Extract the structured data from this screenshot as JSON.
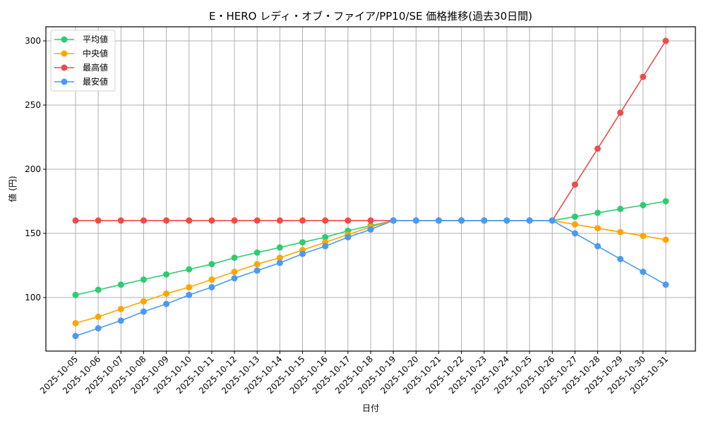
{
  "chart": {
    "title": "E・HERO レディ・オブ・ファイア/PP10/SE 価格推移(過去30日間)",
    "xlabel": "日付",
    "ylabel": "値 (円)"
  },
  "chart_data": {
    "type": "line",
    "title": "E・HERO レディ・オブ・ファイア/PP10/SE 価格推移(過去30日間)",
    "xlabel": "日付",
    "ylabel": "値 (円)",
    "ylim": [
      58,
      311
    ],
    "yticks": [
      100,
      150,
      200,
      250,
      300
    ],
    "grid": true,
    "legend_position": "upper left",
    "x": [
      "2025-10-05",
      "2025-10-06",
      "2025-10-07",
      "2025-10-08",
      "2025-10-09",
      "2025-10-10",
      "2025-10-11",
      "2025-10-12",
      "2025-10-13",
      "2025-10-14",
      "2025-10-15",
      "2025-10-16",
      "2025-10-17",
      "2025-10-18",
      "2025-10-19",
      "2025-10-20",
      "2025-10-21",
      "2025-10-22",
      "2025-10-23",
      "2025-10-24",
      "2025-10-25",
      "2025-10-26",
      "2025-10-27",
      "2025-10-28",
      "2025-10-29",
      "2025-10-30",
      "2025-10-31"
    ],
    "series": [
      {
        "name": "平均値",
        "color": "#2ecc71",
        "values": [
          102,
          106,
          110,
          114,
          118,
          122,
          126,
          131,
          135,
          139,
          143,
          147,
          152,
          156,
          160,
          160,
          160,
          160,
          160,
          160,
          160,
          160,
          163,
          166,
          169,
          172,
          175
        ]
      },
      {
        "name": "中央値",
        "color": "#ffa500",
        "values": [
          80,
          85,
          91,
          97,
          103,
          108,
          114,
          120,
          126,
          131,
          137,
          143,
          149,
          155,
          160,
          160,
          160,
          160,
          160,
          160,
          160,
          160,
          157,
          154,
          151,
          148,
          145
        ]
      },
      {
        "name": "最高値",
        "color": "#f04a4a",
        "values": [
          160,
          160,
          160,
          160,
          160,
          160,
          160,
          160,
          160,
          160,
          160,
          160,
          160,
          160,
          160,
          160,
          160,
          160,
          160,
          160,
          160,
          160,
          188,
          216,
          244,
          272,
          300
        ]
      },
      {
        "name": "最安値",
        "color": "#4a9af5",
        "values": [
          70,
          76,
          82,
          89,
          95,
          102,
          108,
          115,
          121,
          127,
          134,
          140,
          147,
          153,
          160,
          160,
          160,
          160,
          160,
          160,
          160,
          160,
          150,
          140,
          130,
          120,
          110
        ]
      }
    ]
  }
}
